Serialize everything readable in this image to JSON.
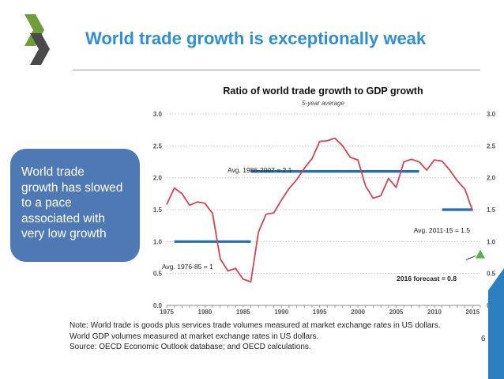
{
  "slide": {
    "title": "World trade growth is exceptionally weak",
    "page_number": "6"
  },
  "callout": {
    "lines": [
      "World trade",
      "growth has slowed",
      "to a pace",
      "associated with",
      "very low growth"
    ]
  },
  "notes": [
    "Note: World trade is goods plus services trade volumes measured at market exchange rates in US dollars.",
    "World GDP volumes measured at market exchange rates in US dollars.",
    "Source: OECD Economic Outlook database; and OECD calculations."
  ],
  "colors": {
    "title": "#2f8fd3",
    "callout": "#4f79b5",
    "series": "#d9434e",
    "averages": "#1f6fb2",
    "forecast": "#5ab14a",
    "logo": "#6d9e3a"
  },
  "chart_data": {
    "type": "line",
    "title": "Ratio of world trade growth to GDP growth",
    "subtitle": "5-year average",
    "xlim": [
      1975,
      2016
    ],
    "ylim": [
      0.0,
      3.0
    ],
    "x_ticks": [
      1975,
      1980,
      1985,
      1990,
      1995,
      2000,
      2005,
      2010,
      2015
    ],
    "y_ticks": [
      "0.0",
      "0.5",
      "1.0",
      "1.5",
      "2.0",
      "2.5",
      "3.0"
    ],
    "series": [
      {
        "name": "Ratio of world trade growth to GDP growth",
        "x": [
          1975,
          1976,
          1977,
          1978,
          1979,
          1980,
          1981,
          1982,
          1983,
          1984,
          1985,
          1986,
          1987,
          1988,
          1989,
          1990,
          1991,
          1992,
          1993,
          1994,
          1995,
          1996,
          1997,
          1998,
          1999,
          2000,
          2001,
          2002,
          2003,
          2004,
          2005,
          2006,
          2007,
          2008,
          2009,
          2010,
          2011,
          2012,
          2013,
          2014,
          2015
        ],
        "y": [
          1.58,
          1.84,
          1.75,
          1.57,
          1.62,
          1.6,
          1.44,
          0.73,
          0.54,
          0.58,
          0.41,
          0.37,
          1.15,
          1.43,
          1.45,
          1.65,
          1.83,
          1.97,
          2.15,
          2.3,
          2.57,
          2.58,
          2.62,
          2.5,
          2.32,
          2.28,
          1.87,
          1.68,
          1.72,
          1.99,
          1.85,
          2.25,
          2.29,
          2.25,
          2.12,
          2.28,
          2.26,
          2.12,
          1.95,
          1.82,
          1.48
        ]
      }
    ],
    "averages": [
      {
        "label": "Avg. 1976-85 = 1",
        "value": 1.0,
        "x_start": 1976,
        "x_end": 1986
      },
      {
        "label": "Avg. 1986-2007 = 2.1",
        "value": 2.1,
        "x_start": 1986,
        "x_end": 2008
      },
      {
        "label": "Avg. 2011-15 = 1.5",
        "value": 1.5,
        "x_start": 2011,
        "x_end": 2015
      }
    ],
    "forecast": {
      "label": "2016 forecast = 0.8",
      "x": 2016,
      "value": 0.8
    }
  }
}
